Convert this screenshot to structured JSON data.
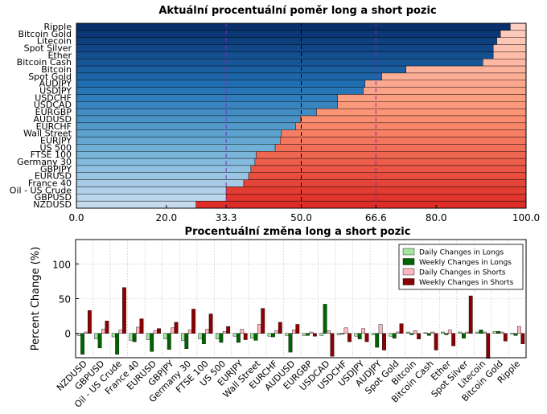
{
  "chart_data": [
    {
      "type": "bar",
      "orientation": "horizontal",
      "stacked": true,
      "title": "Aktuální procentuální poměr long a short pozic",
      "xlim": [
        0,
        100
      ],
      "x_ticks": [
        "0.0",
        "20.0",
        "33.3",
        "50.0",
        "66.6",
        "80.0",
        "100.0"
      ],
      "reference_lines": [
        {
          "value": 33.3,
          "color": "#7b2cbf",
          "style": "dashed"
        },
        {
          "value": 50.0,
          "color": "#000000",
          "style": "dashed"
        },
        {
          "value": 66.6,
          "color": "#7b2cbf",
          "style": "dashed"
        }
      ],
      "categories": [
        "Ripple",
        "Bitcoin Gold",
        "Litecoin",
        "Spot Silver",
        "Ether",
        "Bitcoin Cash",
        "Bitcoin",
        "Spot Gold",
        "AUDJPY",
        "USDJPY",
        "USDCHF",
        "USDCAD",
        "EURGBP",
        "AUDUSD",
        "EURCHF",
        "Wall Street",
        "EURJPY",
        "US 500",
        "FTSE 100",
        "Germany 30",
        "GBPJPY",
        "EURUSD",
        "France 40",
        "Oil - US Crude",
        "GBPUSD",
        "NZDUSD"
      ],
      "series": [
        {
          "values": [
            96.5,
            94.3,
            93.5,
            92.7,
            92.7,
            90.4,
            73.3,
            67.9,
            64.2,
            63.8,
            58.1,
            58.1,
            53.4,
            49.8,
            48.8,
            45.6,
            45.3,
            44.2,
            40.0,
            39.7,
            38.8,
            38.3,
            37.2,
            33.3,
            33.3,
            26.6
          ]
        },
        {
          "values": [
            3.5,
            5.7,
            6.5,
            7.3,
            7.3,
            9.6,
            26.7,
            32.1,
            35.8,
            36.2,
            41.9,
            41.9,
            46.6,
            50.2,
            51.2,
            54.4,
            54.7,
            55.8,
            60.0,
            60.3,
            61.2,
            61.7,
            62.8,
            66.7,
            66.7,
            73.4
          ]
        }
      ],
      "colors": {
        "long_blues": [
          "#08306b",
          "#2171b5",
          "#6baed6",
          "#c6dbef"
        ],
        "short_reds": [
          "#fdd0c2",
          "#fc9272",
          "#de2d26"
        ]
      }
    },
    {
      "type": "bar",
      "title": "Procentuální změna long a short pozic",
      "ylabel": "Percent Change (%)",
      "ylim": [
        -35,
        135
      ],
      "y_ticks": [
        0,
        50,
        100
      ],
      "legend_position": "top-right",
      "categories": [
        "NZDUSD",
        "GBPUSD",
        "Oil - US Crude",
        "France 40",
        "EURUSD",
        "GBPJPY",
        "Germany 30",
        "FTSE 100",
        "US 500",
        "EURJPY",
        "Wall Street",
        "EURCHF",
        "AUDUSD",
        "EURGBP",
        "USDCAD",
        "USDCHF",
        "USDJPY",
        "AUDJPY",
        "Spot Gold",
        "Bitcoin",
        "Bitcoin Cash",
        "Ether",
        "Spot Silver",
        "Litecoin",
        "Bitcoin Gold",
        "Ripple"
      ],
      "series": [
        {
          "name": "Daily Changes in Longs",
          "color": "#a1e5a1",
          "values": [
            -3,
            -8,
            -5,
            -10,
            -9,
            -8,
            -10,
            -8,
            -8,
            -4,
            -7,
            -4,
            -3,
            -3,
            -3,
            -2,
            -4,
            -2,
            -4,
            2,
            1,
            2,
            2,
            2,
            3,
            -1
          ]
        },
        {
          "name": "Weekly Changes in Longs",
          "color": "#006400",
          "values": [
            -30,
            -21,
            -30,
            -12,
            -26,
            -23,
            -22,
            -15,
            -13,
            -13,
            -10,
            -5,
            -27,
            -3,
            42,
            -1,
            -8,
            -20,
            -7,
            -2,
            -3,
            -2,
            -7,
            5,
            3,
            -3
          ]
        },
        {
          "name": "Daily Changes in Shorts",
          "color": "#ffb6c1",
          "values": [
            2,
            6,
            5,
            9,
            4,
            8,
            5,
            6,
            3,
            6,
            13,
            4,
            5,
            2,
            4,
            8,
            7,
            13,
            2,
            4,
            2,
            5,
            2,
            2,
            2,
            10
          ]
        },
        {
          "name": "Weekly Changes in Shorts",
          "color": "#8b0000",
          "values": [
            33,
            18,
            66,
            21,
            7,
            16,
            35,
            28,
            10,
            -9,
            36,
            16,
            13,
            -4,
            -33,
            -12,
            -12,
            -24,
            14,
            -8,
            -24,
            -18,
            54,
            -36,
            -11,
            -15
          ]
        }
      ]
    }
  ]
}
